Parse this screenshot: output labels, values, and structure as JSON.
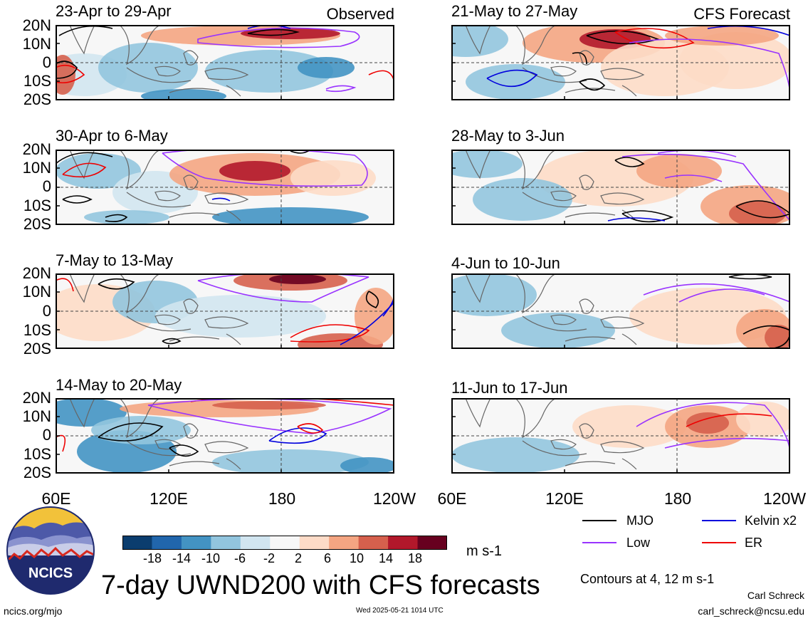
{
  "header": {
    "observed_label": "Observed",
    "forecast_label": "CFS Forecast"
  },
  "chart_data": {
    "type": "heatmap",
    "title": "7-day UWND200 with CFS forecasts",
    "units": "m s-1",
    "lat_labels": [
      "20N",
      "10N",
      "0",
      "10S",
      "20S"
    ],
    "lon_labels": [
      "60E",
      "120E",
      "180",
      "120W"
    ],
    "lat_range": [
      -20,
      20
    ],
    "lon_range": [
      60,
      240
    ],
    "panels": [
      {
        "column": "Observed",
        "period": "23-Apr to 29-Apr"
      },
      {
        "column": "Observed",
        "period": "30-Apr to 6-May"
      },
      {
        "column": "Observed",
        "period": "7-May to 13-May"
      },
      {
        "column": "Observed",
        "period": "14-May to 20-May"
      },
      {
        "column": "CFS Forecast",
        "period": "21-May to 27-May"
      },
      {
        "column": "CFS Forecast",
        "period": "28-May to 3-Jun"
      },
      {
        "column": "CFS Forecast",
        "period": "4-Jun to 10-Jun"
      },
      {
        "column": "CFS Forecast",
        "period": "11-Jun to 17-Jun"
      }
    ],
    "colorbar": {
      "ticks": [
        "-18",
        "-14",
        "-10",
        "-6",
        "-2",
        "2",
        "6",
        "10",
        "14",
        "18"
      ],
      "colors": [
        "#0b3d6e",
        "#2166ac",
        "#4393c3",
        "#92c5de",
        "#d1e5f0",
        "#f7f7f7",
        "#fddbc7",
        "#f4a582",
        "#d6604d",
        "#b2182b",
        "#67001f"
      ]
    },
    "contour_legend": [
      {
        "name": "MJO",
        "color": "#000000"
      },
      {
        "name": "Kelvin x2",
        "color": "#0000dd"
      },
      {
        "name": "Low",
        "color": "#9933ff"
      },
      {
        "name": "ER",
        "color": "#ee0000"
      }
    ],
    "contour_note": "Contours at 4, 12 m s-1"
  },
  "footer": {
    "logo_text": "NCICS",
    "url": "ncics.org/mjo",
    "timestamp": "Wed 2025-05-21 1014 UTC",
    "author": "Carl Schreck",
    "email": "carl_schreck@ncsu.edu"
  }
}
